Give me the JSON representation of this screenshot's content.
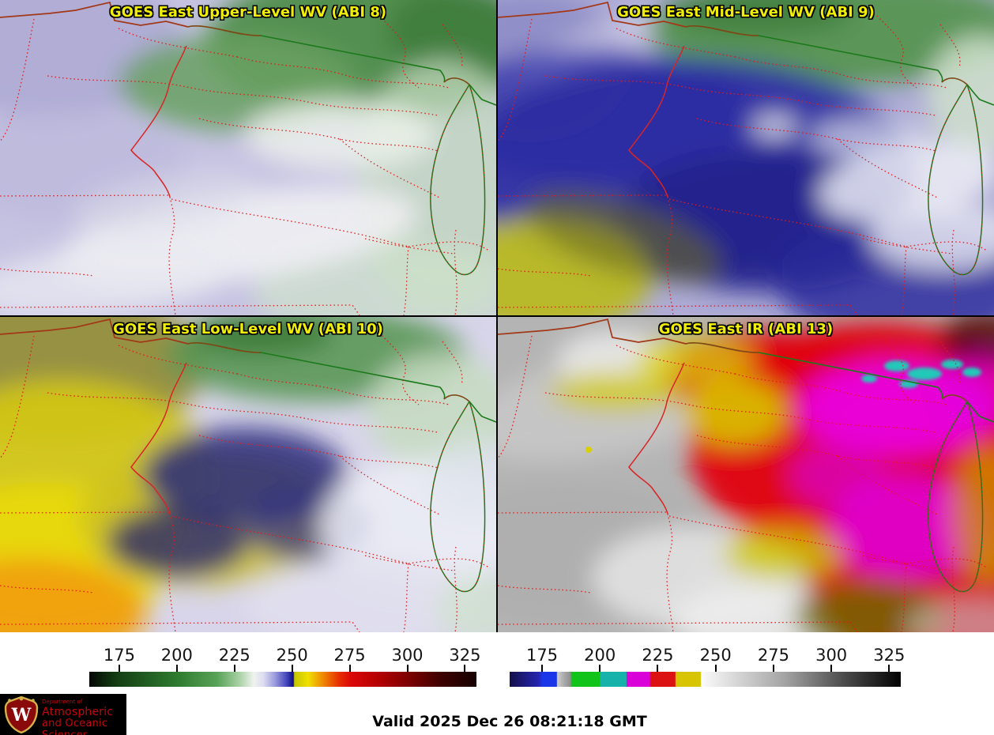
{
  "panels": [
    {
      "key": "abi8",
      "title": "GOES East Upper-Level WV (ABI 8)"
    },
    {
      "key": "abi9",
      "title": "GOES East Mid-Level WV (ABI 9)"
    },
    {
      "key": "abi10",
      "title": "GOES East Low-Level WV (ABI 10)"
    },
    {
      "key": "abi13",
      "title": "GOES East IR (ABI 13)"
    }
  ],
  "colorbars": [
    {
      "name": "water-vapor-brightness-temperature-scale",
      "ticks": [
        175,
        200,
        225,
        250,
        275,
        300,
        325
      ],
      "range": [
        162,
        330
      ],
      "stops": [
        {
          "p": 0.0,
          "c": "#060606"
        },
        {
          "p": 0.05,
          "c": "#0e2f0e"
        },
        {
          "p": 0.08,
          "c": "#164216"
        },
        {
          "p": 0.23,
          "c": "#2f7c2f"
        },
        {
          "p": 0.33,
          "c": "#58a258"
        },
        {
          "p": 0.385,
          "c": "#a4cfa0"
        },
        {
          "p": 0.425,
          "c": "#eff3ee"
        },
        {
          "p": 0.45,
          "c": "#dcdcf0"
        },
        {
          "p": 0.48,
          "c": "#9a9ade"
        },
        {
          "p": 0.51,
          "c": "#4444bc"
        },
        {
          "p": 0.527,
          "c": "#0e0e80"
        },
        {
          "p": 0.53,
          "c": "#c6c600"
        },
        {
          "p": 0.565,
          "c": "#f0e000"
        },
        {
          "p": 0.6,
          "c": "#f09000"
        },
        {
          "p": 0.645,
          "c": "#e63000"
        },
        {
          "p": 0.675,
          "c": "#dc0808"
        },
        {
          "p": 0.75,
          "c": "#b20000"
        },
        {
          "p": 0.825,
          "c": "#7c0000"
        },
        {
          "p": 0.91,
          "c": "#3c0000"
        },
        {
          "p": 1.0,
          "c": "#160000"
        }
      ]
    },
    {
      "name": "ir-brightness-temperature-scale",
      "ticks": [
        175,
        200,
        225,
        250,
        275,
        300,
        325
      ],
      "range": [
        161,
        330
      ],
      "stops": [
        {
          "p": 0.0,
          "c": "#151048"
        },
        {
          "p": 0.075,
          "c": "#2525b2"
        },
        {
          "p": 0.083,
          "c": "#1b36e8"
        },
        {
          "p": 0.12,
          "c": "#1b36e8"
        },
        {
          "p": 0.122,
          "c": "#cfcfcf"
        },
        {
          "p": 0.14,
          "c": "#a8a8a8"
        },
        {
          "p": 0.156,
          "c": "#8e8e8e"
        },
        {
          "p": 0.158,
          "c": "#12c41a"
        },
        {
          "p": 0.23,
          "c": "#12c41a"
        },
        {
          "p": 0.233,
          "c": "#17b3ab"
        },
        {
          "p": 0.298,
          "c": "#17b3ab"
        },
        {
          "p": 0.3,
          "c": "#d902d9"
        },
        {
          "p": 0.358,
          "c": "#d902d9"
        },
        {
          "p": 0.36,
          "c": "#dc1111"
        },
        {
          "p": 0.423,
          "c": "#dc1111"
        },
        {
          "p": 0.425,
          "c": "#d6c500"
        },
        {
          "p": 0.488,
          "c": "#d6c500"
        },
        {
          "p": 0.49,
          "c": "#fbfbfb"
        },
        {
          "p": 0.7,
          "c": "#a5a5a5"
        },
        {
          "p": 0.85,
          "c": "#4e4e4e"
        },
        {
          "p": 1.0,
          "c": "#020202"
        }
      ]
    }
  ],
  "footer": {
    "valid_time": "Valid 2025 Dec 26 08:21:18 GMT"
  },
  "logo": {
    "dept_prefix": "Department of",
    "dept_line1": "Atmospheric",
    "dept_line2": "and Oceanic Sciences",
    "crest_letter": "W"
  },
  "colors": {
    "panel_title": "#f0ee08",
    "boundary_dotted_red": "#e81818",
    "boundary_solid_red": "#d82424",
    "shoreline_green": "#1c7a1c",
    "border_brown": "#7d4815",
    "north_border_red_brown": "#a23818",
    "logo_red": "#c5050c",
    "logo_background": "#000000"
  }
}
